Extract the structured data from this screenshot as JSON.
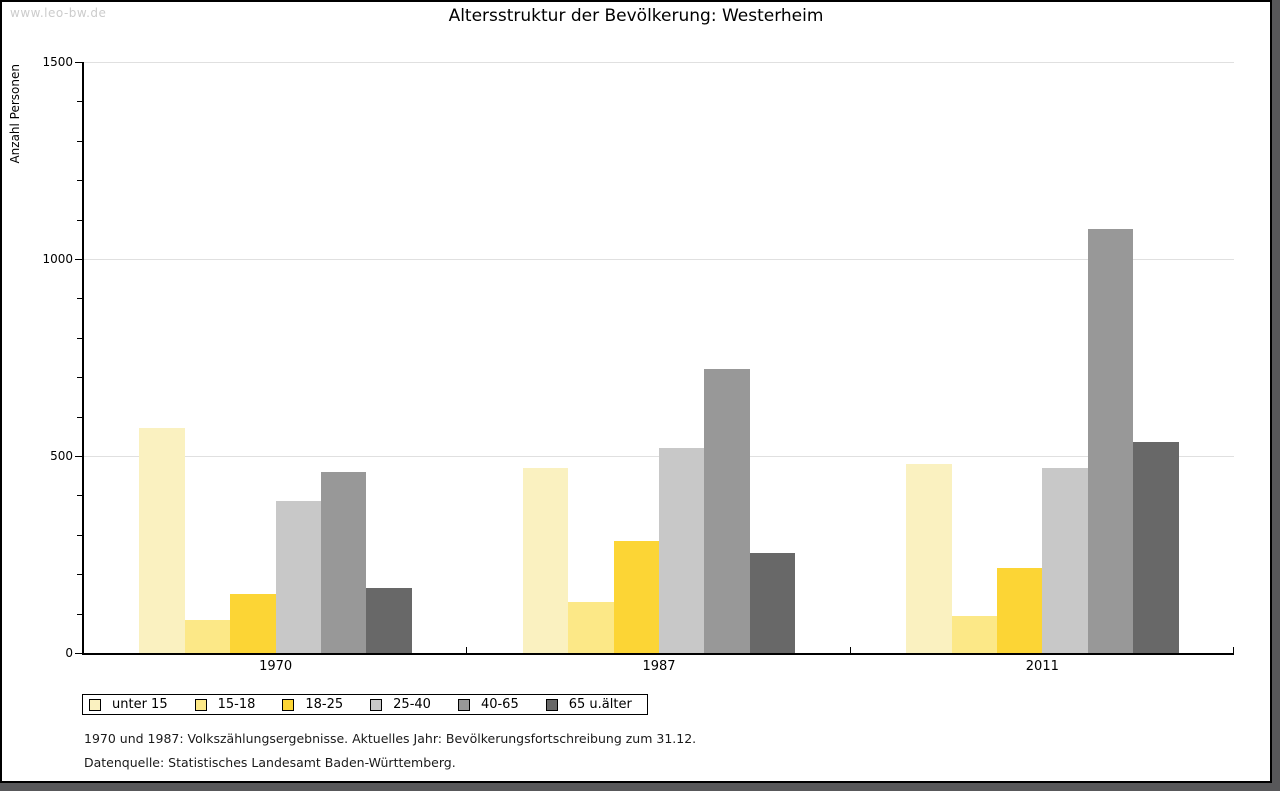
{
  "page": {
    "watermark": "www.leo-bw.de",
    "title": "Altersstruktur der Bevölkerung: Westerheim",
    "footnote_line1": "1970 und 1987: Volkszählungsergebnisse. Aktuelles Jahr: Bevölkerungsfortschreibung zum 31.12.",
    "footnote_line2": "Datenquelle: Statistisches Landesamt Baden-Württemberg."
  },
  "chart_data": {
    "type": "bar",
    "title": "Altersstruktur der Bevölkerung: Westerheim",
    "ylabel": "Anzahl Personen",
    "xlabel": "",
    "categories": [
      "1970",
      "1987",
      "2011"
    ],
    "series": [
      {
        "name": "unter 15",
        "color": "#FAF1C0",
        "values": [
          570,
          470,
          480
        ]
      },
      {
        "name": "15-18",
        "color": "#FCE887",
        "values": [
          85,
          130,
          95
        ]
      },
      {
        "name": "18-25",
        "color": "#FCD535",
        "values": [
          150,
          285,
          215
        ]
      },
      {
        "name": "25-40",
        "color": "#C8C8C8",
        "values": [
          385,
          520,
          470
        ]
      },
      {
        "name": "40-65",
        "color": "#989898",
        "values": [
          460,
          720,
          1075
        ]
      },
      {
        "name": "65 u.älter",
        "color": "#686868",
        "values": [
          165,
          255,
          535
        ]
      }
    ],
    "ylim": [
      0,
      1500
    ],
    "yticks_major": [
      0,
      500,
      1000,
      1500
    ],
    "ytick_minor_step": 100,
    "grid": "horizontal-major",
    "legend_position": "bottom-left"
  },
  "colors": {
    "gridline": "#E0E0E0",
    "axis": "#000000",
    "watermark": "#CCCCCC",
    "frame_shadow": "#58585A"
  }
}
